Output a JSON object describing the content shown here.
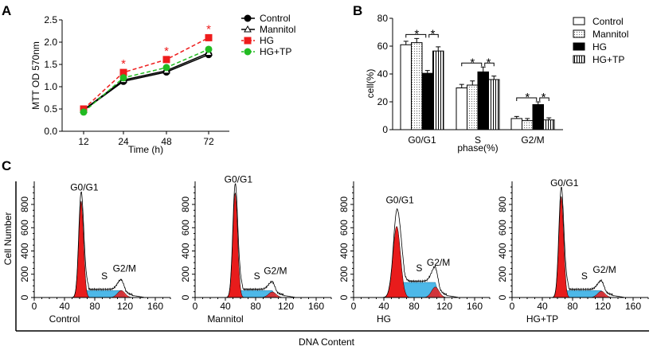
{
  "panel_labels": [
    "A",
    "B",
    "C"
  ],
  "chart_data": [
    {
      "type": "line",
      "panel": "A",
      "xlabel": "Time (h)",
      "ylabel": "MTT OD 570nm",
      "categories": [
        "12",
        "24",
        "48",
        "72"
      ],
      "ylim": [
        0,
        2.5
      ],
      "yticks": [
        "0.0",
        "0.5",
        "1.0",
        "1.5",
        "2.0",
        "2.5"
      ],
      "legend_position": "right",
      "series": [
        {
          "name": "Control",
          "values": [
            0.47,
            1.12,
            1.33,
            1.72
          ],
          "color": "#000000",
          "marker": "circle"
        },
        {
          "name": "Mannitol",
          "values": [
            0.48,
            1.15,
            1.36,
            1.76
          ],
          "color": "#000000",
          "marker": "triangle-open"
        },
        {
          "name": "HG",
          "values": [
            0.5,
            1.32,
            1.61,
            2.1
          ],
          "color": "#ee1c1c",
          "marker": "square",
          "dash": true
        },
        {
          "name": "HG+TP",
          "values": [
            0.43,
            1.2,
            1.43,
            1.84
          ],
          "color": "#22bb22",
          "marker": "circle",
          "dash": true
        }
      ],
      "annotations": [
        "*",
        "*",
        "*"
      ]
    },
    {
      "type": "bar",
      "panel": "B",
      "xlabel": "phase(%)",
      "ylabel": "cell(%)",
      "categories": [
        "G0/G1",
        "S",
        "G2/M"
      ],
      "ylim": [
        0,
        80
      ],
      "yticks": [
        "0",
        "20",
        "40",
        "60",
        "80"
      ],
      "legend_position": "right",
      "series": [
        {
          "name": "Control",
          "values": [
            61,
            30,
            8
          ],
          "errors": [
            2.5,
            2.5,
            1.5
          ],
          "fill": "open"
        },
        {
          "name": "Mannitol",
          "values": [
            62.5,
            32,
            6.5
          ],
          "errors": [
            3,
            3,
            1.5
          ],
          "fill": "dotted"
        },
        {
          "name": "HG",
          "values": [
            40.5,
            41.5,
            18
          ],
          "errors": [
            2,
            3.5,
            2
          ],
          "fill": "solid"
        },
        {
          "name": "HG+TP",
          "values": [
            56.5,
            36,
            7
          ],
          "errors": [
            3,
            2.5,
            1.5
          ],
          "fill": "vertical-lines"
        }
      ],
      "significance": "*"
    },
    {
      "type": "area",
      "panel": "C",
      "title": "Control",
      "xlabel": "DNA Content",
      "ylabel": "Cell Number",
      "xlim": [
        0,
        180
      ],
      "xticks": [
        "0",
        "40",
        "80",
        "120",
        "160"
      ],
      "ylim": [
        0,
        1000
      ],
      "yticks": [
        "0",
        "200",
        "400",
        "600",
        "800"
      ],
      "peak_labels": [
        "G0/G1",
        "S",
        "G2/M"
      ],
      "g1_peak": [
        62,
        830
      ],
      "s_level": 60,
      "g2_peak": [
        115,
        100
      ]
    },
    {
      "type": "area",
      "panel": "C",
      "title": "Mannitol",
      "xlabel": "DNA Content",
      "ylabel": "Cell Number",
      "xlim": [
        0,
        180
      ],
      "xticks": [
        "0",
        "40",
        "80",
        "120",
        "160"
      ],
      "ylim": [
        0,
        1000
      ],
      "yticks": [
        "0",
        "200",
        "400",
        "600",
        "800"
      ],
      "peak_labels": [
        "G0/G1",
        "S",
        "G2/M"
      ],
      "g1_peak": [
        53,
        900
      ],
      "s_level": 60,
      "g2_peak": [
        102,
        80
      ]
    },
    {
      "type": "area",
      "panel": "C",
      "title": "HG",
      "xlabel": "DNA Content",
      "ylabel": "Cell Number",
      "xlim": [
        0,
        180
      ],
      "xticks": [
        "0",
        "40",
        "80",
        "120",
        "160"
      ],
      "ylim": [
        0,
        1000
      ],
      "yticks": [
        "0",
        "200",
        "400",
        "600",
        "800"
      ],
      "peak_labels": [
        "G0/G1",
        "S",
        "G2/M"
      ],
      "g1_peak": [
        57,
        720
      ],
      "s_level": 130,
      "g2_peak": [
        108,
        150
      ]
    },
    {
      "type": "area",
      "panel": "C",
      "title": "HG+TP",
      "xlabel": "DNA Content",
      "ylabel": "Cell Number",
      "xlim": [
        0,
        180
      ],
      "xticks": [
        "0",
        "40",
        "80",
        "120",
        "160"
      ],
      "ylim": [
        0,
        1000
      ],
      "yticks": [
        "0",
        "200",
        "400",
        "600",
        "800"
      ],
      "peak_labels": [
        "G0/G1",
        "S",
        "G2/M"
      ],
      "g1_peak": [
        65,
        870
      ],
      "s_level": 60,
      "g2_peak": [
        118,
        90
      ]
    }
  ]
}
